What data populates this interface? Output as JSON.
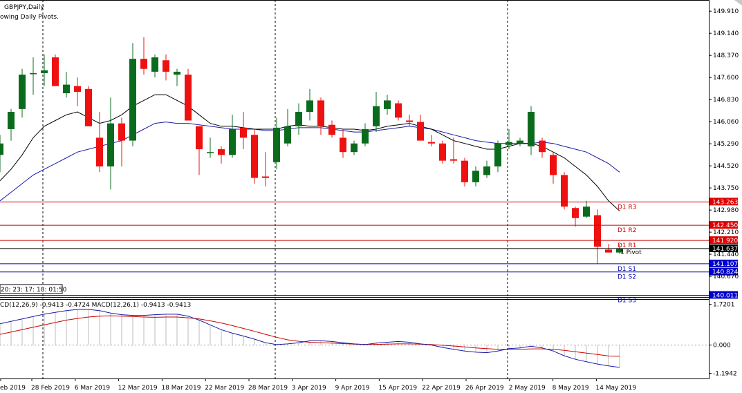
{
  "header": {
    "symbol": "GBPJPY,Daily",
    "subtitle": "owing Daily Pivots."
  },
  "clock": "20: 23: 17: 18: 01:50",
  "macd_label": "CD(12,26,9) -0.9413 -0.4724 MACD(12,26,1) -0.9413 -0.9413",
  "colors": {
    "bull": "#0b6b1d",
    "bear": "#ee1111",
    "ma_fast": "#000000",
    "ma_slow": "#1a1aaa",
    "resistance": "#cc0000",
    "support": "#0000aa",
    "macd_line": "#1a1aaa",
    "macd_signal": "#cc0000"
  },
  "chart_data": {
    "type": "candlestick",
    "price_axis_ticks": [
      "149.910",
      "149.140",
      "148.370",
      "147.600",
      "146.830",
      "146.060",
      "145.290",
      "144.520",
      "143.750",
      "142.980",
      "142.210",
      "141.440",
      "140.670"
    ],
    "price_range": [
      139.95,
      150.3
    ],
    "date_labels": [
      "eb 2019",
      "28 Feb 2019",
      "6 Mar 2019",
      "12 Mar 2019",
      "18 Mar 2019",
      "22 Mar 2019",
      "28 Mar 2019",
      "3 Apr 2019",
      "9 Apr 2019",
      "15 Apr 2019",
      "22 Apr 2019",
      "26 Apr 2019",
      "2 May 2019",
      "8 May 2019",
      "14 May 2019"
    ],
    "candles": [
      {
        "o": 144.9,
        "h": 145.6,
        "l": 144.3,
        "c": 145.3
      },
      {
        "o": 145.8,
        "h": 146.5,
        "l": 145.4,
        "c": 146.4
      },
      {
        "o": 146.5,
        "h": 147.9,
        "l": 146.2,
        "c": 147.7
      },
      {
        "o": 147.75,
        "h": 148.3,
        "l": 147.0,
        "c": 147.75
      },
      {
        "o": 147.75,
        "h": 148.4,
        "l": 147.3,
        "c": 147.85
      },
      {
        "o": 148.3,
        "h": 148.4,
        "l": 147.3,
        "c": 147.3
      },
      {
        "o": 147.05,
        "h": 147.8,
        "l": 146.9,
        "c": 147.35
      },
      {
        "o": 147.3,
        "h": 147.6,
        "l": 146.6,
        "c": 147.1
      },
      {
        "o": 147.2,
        "h": 147.3,
        "l": 145.9,
        "c": 145.9
      },
      {
        "o": 145.5,
        "h": 146.4,
        "l": 144.3,
        "c": 144.5
      },
      {
        "o": 144.5,
        "h": 146.9,
        "l": 143.7,
        "c": 146.0
      },
      {
        "o": 146.0,
        "h": 146.2,
        "l": 144.5,
        "c": 145.4
      },
      {
        "o": 145.4,
        "h": 148.8,
        "l": 145.2,
        "c": 148.25
      },
      {
        "o": 148.25,
        "h": 149.0,
        "l": 147.7,
        "c": 147.9
      },
      {
        "o": 147.8,
        "h": 148.4,
        "l": 147.6,
        "c": 148.3
      },
      {
        "o": 148.2,
        "h": 148.4,
        "l": 147.5,
        "c": 147.8
      },
      {
        "o": 147.7,
        "h": 147.9,
        "l": 147.3,
        "c": 147.8
      },
      {
        "o": 147.7,
        "h": 147.9,
        "l": 146.1,
        "c": 146.1
      },
      {
        "o": 145.9,
        "h": 145.9,
        "l": 144.2,
        "c": 145.1
      },
      {
        "o": 145.0,
        "h": 145.5,
        "l": 144.8,
        "c": 145.0
      },
      {
        "o": 145.1,
        "h": 145.2,
        "l": 144.6,
        "c": 144.9
      },
      {
        "o": 144.9,
        "h": 146.3,
        "l": 144.8,
        "c": 145.8
      },
      {
        "o": 145.85,
        "h": 146.4,
        "l": 145.1,
        "c": 145.5
      },
      {
        "o": 145.6,
        "h": 145.8,
        "l": 143.9,
        "c": 144.1
      },
      {
        "o": 144.15,
        "h": 145.0,
        "l": 143.8,
        "c": 144.1
      },
      {
        "o": 144.65,
        "h": 146.2,
        "l": 144.4,
        "c": 145.85
      },
      {
        "o": 145.3,
        "h": 146.5,
        "l": 145.2,
        "c": 145.9
      },
      {
        "o": 145.9,
        "h": 146.7,
        "l": 145.6,
        "c": 146.4
      },
      {
        "o": 146.4,
        "h": 147.2,
        "l": 146.1,
        "c": 146.8
      },
      {
        "o": 146.8,
        "h": 146.9,
        "l": 145.6,
        "c": 145.9
      },
      {
        "o": 145.95,
        "h": 146.1,
        "l": 145.5,
        "c": 145.6
      },
      {
        "o": 145.5,
        "h": 145.8,
        "l": 144.8,
        "c": 145.0
      },
      {
        "o": 145.0,
        "h": 145.4,
        "l": 144.9,
        "c": 145.3
      },
      {
        "o": 145.3,
        "h": 146.0,
        "l": 145.2,
        "c": 145.8
      },
      {
        "o": 145.9,
        "h": 147.1,
        "l": 145.7,
        "c": 146.6
      },
      {
        "o": 146.5,
        "h": 147.0,
        "l": 146.3,
        "c": 146.8
      },
      {
        "o": 146.7,
        "h": 146.8,
        "l": 146.1,
        "c": 146.2
      },
      {
        "o": 146.1,
        "h": 146.3,
        "l": 145.9,
        "c": 146.05
      },
      {
        "o": 146.05,
        "h": 146.3,
        "l": 145.4,
        "c": 145.4
      },
      {
        "o": 145.35,
        "h": 145.6,
        "l": 145.2,
        "c": 145.3
      },
      {
        "o": 145.3,
        "h": 145.4,
        "l": 144.6,
        "c": 144.7
      },
      {
        "o": 144.75,
        "h": 145.5,
        "l": 144.6,
        "c": 144.7
      },
      {
        "o": 144.7,
        "h": 144.8,
        "l": 143.8,
        "c": 143.95
      },
      {
        "o": 143.95,
        "h": 144.5,
        "l": 143.8,
        "c": 144.35
      },
      {
        "o": 144.2,
        "h": 144.7,
        "l": 144.1,
        "c": 144.5
      },
      {
        "o": 144.5,
        "h": 145.4,
        "l": 144.3,
        "c": 145.3
      },
      {
        "o": 145.25,
        "h": 145.8,
        "l": 145.1,
        "c": 145.35
      },
      {
        "o": 145.3,
        "h": 145.5,
        "l": 145.2,
        "c": 145.4
      },
      {
        "o": 145.2,
        "h": 146.6,
        "l": 144.9,
        "c": 146.4
      },
      {
        "o": 145.4,
        "h": 145.5,
        "l": 144.8,
        "c": 145.0
      },
      {
        "o": 144.9,
        "h": 145.0,
        "l": 143.9,
        "c": 144.2
      },
      {
        "o": 144.2,
        "h": 144.3,
        "l": 143.0,
        "c": 143.1
      },
      {
        "o": 143.05,
        "h": 143.1,
        "l": 142.4,
        "c": 142.7
      },
      {
        "o": 142.75,
        "h": 143.3,
        "l": 142.7,
        "c": 143.1
      },
      {
        "o": 142.8,
        "h": 143.0,
        "l": 141.1,
        "c": 141.7
      },
      {
        "o": 141.6,
        "h": 141.8,
        "l": 141.5,
        "c": 141.5
      },
      {
        "o": 141.5,
        "h": 141.8,
        "l": 141.45,
        "c": 141.63
      }
    ],
    "ma_fast": [
      144.0,
      144.4,
      144.9,
      145.5,
      145.9,
      146.1,
      146.3,
      146.4,
      146.2,
      146.0,
      146.1,
      146.3,
      146.6,
      146.8,
      147.0,
      147.0,
      146.8,
      146.6,
      146.3,
      146.0,
      145.9,
      145.9,
      145.85,
      145.8,
      145.8,
      145.8,
      145.9,
      145.95,
      145.9,
      145.9,
      145.85,
      145.8,
      145.8,
      145.75,
      145.8,
      145.9,
      145.95,
      146.0,
      145.9,
      145.8,
      145.6,
      145.4,
      145.3,
      145.2,
      145.1,
      145.1,
      145.2,
      145.3,
      145.3,
      145.2,
      145.0,
      144.8,
      144.5,
      144.2,
      143.8,
      143.3,
      142.95
    ],
    "ma_slow": [
      143.3,
      143.6,
      143.9,
      144.2,
      144.4,
      144.6,
      144.8,
      145.0,
      145.1,
      145.2,
      145.3,
      145.4,
      145.6,
      145.8,
      146.0,
      146.05,
      146.0,
      146.0,
      145.95,
      145.9,
      145.85,
      145.8,
      145.8,
      145.8,
      145.75,
      145.75,
      145.8,
      145.85,
      145.85,
      145.85,
      145.8,
      145.75,
      145.7,
      145.7,
      145.75,
      145.8,
      145.85,
      145.9,
      145.85,
      145.8,
      145.7,
      145.6,
      145.5,
      145.4,
      145.35,
      145.3,
      145.3,
      145.3,
      145.3,
      145.35,
      145.3,
      145.2,
      145.1,
      145.0,
      144.8,
      144.6,
      144.3
    ],
    "pivots": [
      {
        "name": "D1 R3",
        "value": 143.263,
        "type": "resistance",
        "line": "#cc0000",
        "badge": "#dd0000"
      },
      {
        "name": "D1 R2",
        "value": 142.45,
        "type": "resistance",
        "line": "#cc0000",
        "badge": "#dd0000"
      },
      {
        "name": "D1 R1",
        "value": 141.92,
        "type": "resistance",
        "line": "#cc0000",
        "badge": "#dd0000"
      },
      {
        "name": "1 Pivot",
        "value": 141.637,
        "type": "pivot",
        "line": "#000000",
        "badge": "#000000"
      },
      {
        "name": "D1 S1",
        "value": 141.107,
        "type": "support",
        "line": "#0000aa",
        "badge": "#0000cc"
      },
      {
        "name": "D1 S2",
        "value": 140.824,
        "type": "support",
        "line": "#0000aa",
        "badge": "#0000cc"
      },
      {
        "name": "D1 S3",
        "value": 140.011,
        "type": "support",
        "line": "#0000aa",
        "badge": "#0000cc"
      }
    ],
    "pivot_badges": [
      "143.263",
      "142.450",
      "141.920",
      "141.637",
      "141.107",
      "140.824",
      "140.011"
    ],
    "macd": {
      "axis_ticks": [
        "1.7201",
        "0.000",
        "-1.1942"
      ],
      "range": [
        -1.35,
        1.85
      ],
      "histogram": [
        0.9,
        1.0,
        1.1,
        1.2,
        1.3,
        1.38,
        1.45,
        1.5,
        1.5,
        1.45,
        1.35,
        1.28,
        1.25,
        1.25,
        1.28,
        1.3,
        1.3,
        1.22,
        1.05,
        0.85,
        0.65,
        0.5,
        0.38,
        0.25,
        0.1,
        0.02,
        0.05,
        0.1,
        0.18,
        0.18,
        0.15,
        0.1,
        0.05,
        0.02,
        0.08,
        0.12,
        0.15,
        0.12,
        0.05,
        0.0,
        -0.1,
        -0.18,
        -0.25,
        -0.3,
        -0.32,
        -0.25,
        -0.15,
        -0.12,
        -0.05,
        -0.12,
        -0.25,
        -0.45,
        -0.6,
        -0.7,
        -0.8,
        -0.88,
        -0.94
      ],
      "signal": [
        0.45,
        0.55,
        0.65,
        0.75,
        0.85,
        0.95,
        1.05,
        1.12,
        1.18,
        1.22,
        1.23,
        1.22,
        1.2,
        1.18,
        1.17,
        1.18,
        1.18,
        1.15,
        1.1,
        1.02,
        0.93,
        0.82,
        0.7,
        0.58,
        0.45,
        0.33,
        0.22,
        0.16,
        0.12,
        0.1,
        0.08,
        0.06,
        0.04,
        0.03,
        0.03,
        0.04,
        0.05,
        0.05,
        0.04,
        0.02,
        -0.01,
        -0.04,
        -0.08,
        -0.12,
        -0.15,
        -0.18,
        -0.18,
        -0.18,
        -0.16,
        -0.16,
        -0.18,
        -0.22,
        -0.28,
        -0.34,
        -0.4,
        -0.46,
        -0.47
      ]
    }
  }
}
